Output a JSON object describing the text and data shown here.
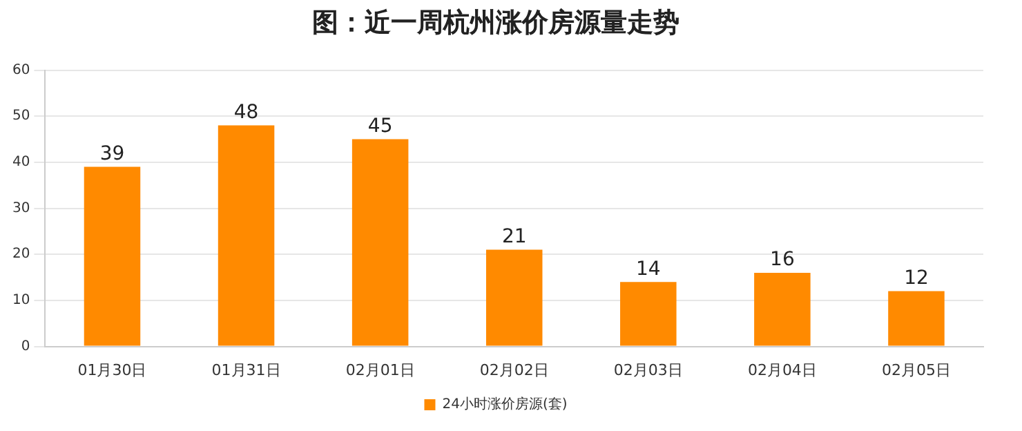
{
  "chart_data": {
    "type": "bar",
    "title": "图：近一周杭州涨价房源量走势",
    "categories": [
      "01月30日",
      "01月31日",
      "02月01日",
      "02月02日",
      "02月03日",
      "02月04日",
      "02月05日"
    ],
    "series": [
      {
        "name": "24小时涨价房源(套)",
        "color": "#ff8a00",
        "values": [
          39,
          48,
          45,
          21,
          14,
          16,
          12
        ]
      }
    ],
    "ylim": [
      0,
      60
    ],
    "yticks": [
      0,
      10,
      20,
      30,
      40,
      50,
      60
    ],
    "grid": "y",
    "legend": "bottom",
    "data_labels": true
  }
}
